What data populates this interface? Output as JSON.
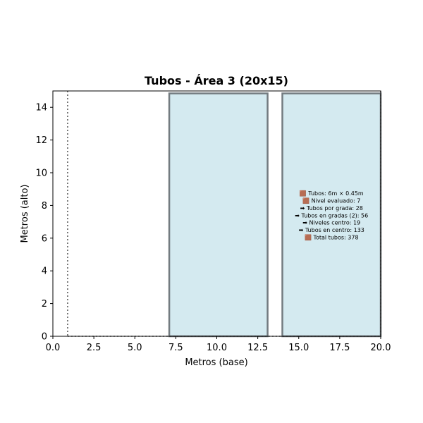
{
  "chart_data": {
    "type": "area",
    "title": "Tubos - Área 3 (20x15)",
    "xlabel": "Metros (base)",
    "ylabel": "Metros (alto)",
    "xlim": [
      0,
      20
    ],
    "ylim": [
      0,
      15
    ],
    "xticks": [
      "0.0",
      "2.5",
      "5.0",
      "7.5",
      "10.0",
      "12.5",
      "15.0",
      "17.5",
      "20.0"
    ],
    "xtick_values": [
      0,
      2.5,
      5,
      7.5,
      10,
      12.5,
      15,
      17.5,
      20
    ],
    "yticks": [
      "0",
      "2",
      "4",
      "6",
      "8",
      "10",
      "12",
      "14"
    ],
    "ytick_values": [
      0,
      2,
      4,
      6,
      8,
      10,
      12,
      14
    ],
    "grid": false,
    "rectangles": [
      {
        "x0": 7.1,
        "x1": 13.1,
        "y0": 0,
        "y1": 14.85,
        "fill": "#d4eaf0",
        "stroke": "#737b80"
      },
      {
        "x0": 14.0,
        "x1": 20.0,
        "y0": 0,
        "y1": 14.85,
        "fill": "#d4eaf0",
        "stroke": "#737b80"
      }
    ],
    "dotted_boundary_x": 0.9,
    "annotation_lines": [
      "🟫 Tubos: 6m × 0.45m",
      "🟫 Nivel evaluado: 7",
      "➡ Tubos por grada: 28",
      "➡ Tubos en gradas (2): 56",
      "➡ Niveles centro: 19",
      "➡ Tubos en centro: 133",
      "🟫 Total tubos: 378"
    ],
    "annotation_anchor": {
      "x": 17.0,
      "y": 7.4
    }
  }
}
